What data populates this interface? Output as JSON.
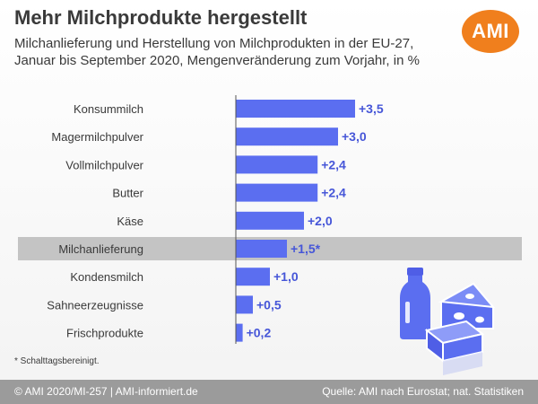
{
  "header": {
    "title": "Mehr Milchprodukte hergestellt",
    "subtitle": "Milchanlieferung und Herstellung von Milchprodukten in der EU-27, Januar bis September 2020, Mengenveränderung zum Vorjahr, in %"
  },
  "logo": {
    "text": "AMI",
    "color": "#f07f1d"
  },
  "chart_data": {
    "type": "bar",
    "orientation": "horizontal",
    "title": "Mehr Milchprodukte hergestellt",
    "categories": [
      "Konsummilch",
      "Magermilchpulver",
      "Vollmilchpulver",
      "Butter",
      "Käse",
      "Milchanlieferung",
      "Kondensmilch",
      "Sahneerzeugnisse",
      "Frischprodukte"
    ],
    "values": [
      3.5,
      3.0,
      2.4,
      2.4,
      2.0,
      1.5,
      1.0,
      0.5,
      0.2
    ],
    "value_labels": [
      "+3,5",
      "+3,0",
      "+2,4",
      "+2,4",
      "+2,0",
      "+1,5*",
      "+1,0",
      "+0,5",
      "+0,2"
    ],
    "highlighted_category": "Milchanlieferung",
    "xlim": [
      0,
      3.5
    ],
    "bar_color": "#5b6ef0",
    "label_color": "#4656d8",
    "highlight_band_color": "#c4c4c4",
    "grid": false
  },
  "footnote": "* Schalttagsbereinigt.",
  "footer": {
    "left": "© AMI 2020/MI-257 | AMI-informiert.de",
    "right": "Quelle: AMI nach Eurostat; nat. Statistiken",
    "color": "#9b9b9b"
  },
  "illustration": {
    "icons": [
      "milk-bottle-icon",
      "cheese-icon",
      "butter-icon"
    ]
  }
}
